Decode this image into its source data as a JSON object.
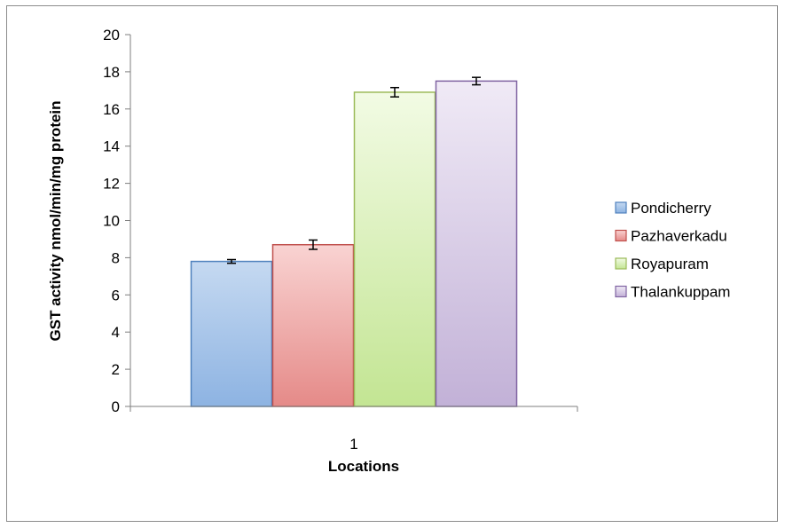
{
  "chart_data": {
    "type": "bar",
    "categories": [
      "1"
    ],
    "series": [
      {
        "name": "Pondicherry",
        "values": [
          7.8
        ],
        "error": [
          0.1
        ],
        "color": "#4f81bd",
        "fill_top": "#c5d9f1",
        "fill_bottom": "#8db3e2"
      },
      {
        "name": "Pazhaverkadu",
        "values": [
          8.7
        ],
        "error": [
          0.25
        ],
        "color": "#c0504d",
        "fill_top": "#f9d3d2",
        "fill_bottom": "#e58a88"
      },
      {
        "name": "Royapuram",
        "values": [
          16.9
        ],
        "error": [
          0.25
        ],
        "color": "#9bbb59",
        "fill_top": "#f2fbe4",
        "fill_bottom": "#c3e593"
      },
      {
        "name": "Thalankuppam",
        "values": [
          17.5
        ],
        "error": [
          0.2
        ],
        "color": "#8064a2",
        "fill_top": "#f0eaf6",
        "fill_bottom": "#c2b1d7"
      }
    ],
    "title": "",
    "xlabel": "Locations",
    "ylabel": "GST activity nmol/min/mg protein",
    "ylim": [
      0,
      20
    ],
    "yticks": [
      "0",
      "2",
      "4",
      "6",
      "8",
      "10",
      "12",
      "14",
      "16",
      "18",
      "20"
    ],
    "grid": false,
    "legend_position": "right"
  }
}
